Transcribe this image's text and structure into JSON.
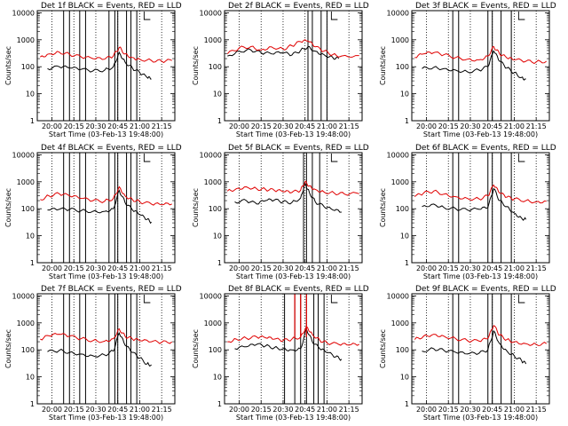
{
  "figure": {
    "background": "#ffffff"
  },
  "colors": {
    "events": "#000000",
    "lld": "#e00000",
    "axis": "#000000"
  },
  "chart_data": [
    {
      "type": "line",
      "detector": "1f",
      "title": "Det 1f BLACK = Events, RED = LLD",
      "xlabel": "Start Time (03-Feb-13 19:48:00)",
      "ylabel": "Counts/sec",
      "xlim": [
        "19:50",
        "21:24"
      ],
      "ylim": [
        1,
        12000
      ],
      "yscale": "log",
      "xticks": [
        "20:00",
        "20:15",
        "20:30",
        "20:45",
        "21:00",
        "21:15"
      ],
      "yticks": [
        "1",
        "10",
        "100",
        "1000",
        "10000"
      ],
      "series": [
        {
          "name": "Events",
          "color": "#000000",
          "x": [
            "19:57",
            "20:05",
            "20:12",
            "20:20",
            "20:28",
            "20:36",
            "20:42",
            "20:46",
            "20:50",
            "20:55",
            "21:00",
            "21:05",
            "21:08"
          ],
          "y": [
            85,
            100,
            90,
            80,
            70,
            75,
            100,
            340,
            150,
            90,
            60,
            40,
            35
          ]
        },
        {
          "name": "LLD",
          "color": "#e00000",
          "x": [
            "19:52",
            "19:58",
            "20:05",
            "20:12",
            "20:20",
            "20:28",
            "20:36",
            "20:42",
            "20:46",
            "20:50",
            "20:55",
            "21:00",
            "21:08",
            "21:15",
            "21:22"
          ],
          "y": [
            230,
            300,
            350,
            290,
            230,
            200,
            190,
            250,
            520,
            300,
            220,
            190,
            170,
            160,
            170
          ]
        }
      ],
      "event_lines": [
        "20:08",
        "20:12",
        "20:19",
        "20:23",
        "20:39",
        "20:43",
        "20:45",
        "20:51",
        "20:54",
        "20:58"
      ]
    },
    {
      "type": "line",
      "detector": "2f",
      "title": "Det 2f BLACK = Events, RED = LLD",
      "xlabel": "Start Time (03-Feb-13 19:48:00)",
      "ylabel": "Counts/sec",
      "xlim": [
        "19:50",
        "21:24"
      ],
      "ylim": [
        1,
        12000
      ],
      "yscale": "log",
      "xticks": [
        "20:00",
        "20:15",
        "20:30",
        "20:45",
        "21:00",
        "21:15"
      ],
      "yticks": [
        "1",
        "10",
        "100",
        "1000",
        "10000"
      ],
      "series": [
        {
          "name": "Events",
          "color": "#000000",
          "x": [
            "19:52",
            "20:00",
            "20:08",
            "20:15",
            "20:22",
            "20:30",
            "20:36",
            "20:42",
            "20:47",
            "20:52",
            "20:58",
            "21:04",
            "21:08"
          ],
          "y": [
            250,
            380,
            420,
            330,
            300,
            330,
            270,
            400,
            550,
            380,
            280,
            220,
            200
          ]
        },
        {
          "name": "LLD",
          "color": "#e00000",
          "x": [
            "19:52",
            "20:00",
            "20:08",
            "20:15",
            "20:22",
            "20:30",
            "20:36",
            "20:42",
            "20:47",
            "20:52",
            "20:58",
            "21:04",
            "21:10",
            "21:22"
          ],
          "y": [
            300,
            500,
            560,
            420,
            550,
            450,
            600,
            850,
            900,
            550,
            380,
            280,
            250,
            260
          ]
        }
      ],
      "event_lines": [
        "20:47",
        "20:50",
        "20:56",
        "21:00"
      ]
    },
    {
      "type": "line",
      "detector": "3f",
      "title": "Det 3f BLACK = Events, RED = LLD",
      "xlabel": "Start Time (03-Feb-13 19:48:00)",
      "ylabel": "Counts/sec",
      "xlim": [
        "19:50",
        "21:24"
      ],
      "ylim": [
        1,
        12000
      ],
      "yscale": "log",
      "xticks": [
        "20:00",
        "20:15",
        "20:30",
        "20:45",
        "21:00",
        "21:15"
      ],
      "yticks": [
        "1",
        "10",
        "100",
        "1000",
        "10000"
      ],
      "series": [
        {
          "name": "Events",
          "color": "#000000",
          "x": [
            "19:57",
            "20:05",
            "20:12",
            "20:20",
            "20:28",
            "20:36",
            "20:42",
            "20:46",
            "20:50",
            "20:55",
            "21:00",
            "21:05",
            "21:08"
          ],
          "y": [
            85,
            95,
            85,
            75,
            65,
            75,
            100,
            380,
            160,
            90,
            60,
            40,
            35
          ]
        },
        {
          "name": "LLD",
          "color": "#e00000",
          "x": [
            "19:52",
            "19:58",
            "20:05",
            "20:12",
            "20:20",
            "20:28",
            "20:36",
            "20:42",
            "20:46",
            "20:50",
            "20:55",
            "21:00",
            "21:08",
            "21:15",
            "21:22"
          ],
          "y": [
            220,
            300,
            330,
            280,
            220,
            190,
            180,
            250,
            560,
            300,
            210,
            180,
            160,
            150,
            160
          ]
        }
      ],
      "event_lines": [
        "20:18",
        "20:22",
        "20:42",
        "20:45",
        "20:51",
        "20:58"
      ]
    },
    {
      "type": "line",
      "detector": "4f",
      "title": "Det 4f BLACK = Events, RED = LLD",
      "xlabel": "Start Time (03-Feb-13 19:48:00)",
      "ylabel": "Counts/sec",
      "xlim": [
        "19:50",
        "21:24"
      ],
      "ylim": [
        1,
        12000
      ],
      "yscale": "log",
      "xticks": [
        "20:00",
        "20:15",
        "20:30",
        "20:45",
        "21:00",
        "21:15"
      ],
      "yticks": [
        "1",
        "10",
        "100",
        "1000",
        "10000"
      ],
      "series": [
        {
          "name": "Events",
          "color": "#000000",
          "x": [
            "19:57",
            "20:05",
            "20:12",
            "20:20",
            "20:28",
            "20:36",
            "20:42",
            "20:46",
            "20:50",
            "20:55",
            "21:00",
            "21:05",
            "21:08"
          ],
          "y": [
            90,
            95,
            95,
            85,
            80,
            80,
            100,
            480,
            170,
            90,
            60,
            40,
            32
          ]
        },
        {
          "name": "LLD",
          "color": "#e00000",
          "x": [
            "19:52",
            "19:58",
            "20:05",
            "20:12",
            "20:20",
            "20:28",
            "20:36",
            "20:42",
            "20:46",
            "20:50",
            "20:55",
            "21:00",
            "21:08",
            "21:15",
            "21:22"
          ],
          "y": [
            220,
            300,
            360,
            300,
            240,
            200,
            190,
            240,
            650,
            300,
            220,
            180,
            150,
            140,
            150
          ]
        }
      ],
      "event_lines": [
        "20:08",
        "20:12",
        "20:19",
        "20:23",
        "20:39",
        "20:43",
        "20:45",
        "20:51",
        "20:54",
        "20:58"
      ]
    },
    {
      "type": "line",
      "detector": "5f",
      "title": "Det 5f BLACK = Events, RED = LLD",
      "xlabel": "Start Time (03-Feb-13 19:48:00)",
      "ylabel": "Counts/sec",
      "xlim": [
        "19:50",
        "21:24"
      ],
      "ylim": [
        1,
        12000
      ],
      "yscale": "log",
      "xticks": [
        "20:00",
        "20:15",
        "20:30",
        "20:45",
        "21:00",
        "21:15"
      ],
      "yticks": [
        "1",
        "10",
        "100",
        "1000",
        "10000"
      ],
      "series": [
        {
          "name": "Events",
          "color": "#000000",
          "x": [
            "19:57",
            "20:05",
            "20:12",
            "20:18",
            "20:24",
            "20:30",
            "20:36",
            "20:42",
            "20:45",
            "20:48",
            "20:52",
            "20:58",
            "21:04",
            "21:10"
          ],
          "y": [
            180,
            200,
            150,
            200,
            210,
            180,
            170,
            250,
            900,
            400,
            180,
            120,
            90,
            75
          ]
        },
        {
          "name": "LLD",
          "color": "#e00000",
          "x": [
            "19:52",
            "19:58",
            "20:05",
            "20:12",
            "20:18",
            "20:24",
            "20:30",
            "20:36",
            "20:42",
            "20:45",
            "20:48",
            "20:52",
            "20:58",
            "21:05",
            "21:12",
            "21:22"
          ],
          "y": [
            450,
            550,
            650,
            550,
            520,
            480,
            430,
            400,
            480,
            1000,
            700,
            520,
            420,
            380,
            350,
            360
          ]
        }
      ],
      "event_lines": [
        "20:44",
        "20:46",
        "20:50",
        "20:55"
      ]
    },
    {
      "type": "line",
      "detector": "6f",
      "title": "Det 6f BLACK = Events, RED = LLD",
      "xlabel": "Start Time (03-Feb-13 19:48:00)",
      "ylabel": "Counts/sec",
      "xlim": [
        "19:50",
        "21:24"
      ],
      "ylim": [
        1,
        12000
      ],
      "yscale": "log",
      "xticks": [
        "20:00",
        "20:15",
        "20:30",
        "20:45",
        "21:00",
        "21:15"
      ],
      "yticks": [
        "1",
        "10",
        "100",
        "1000",
        "10000"
      ],
      "series": [
        {
          "name": "Events",
          "color": "#000000",
          "x": [
            "19:57",
            "20:05",
            "20:12",
            "20:20",
            "20:28",
            "20:36",
            "20:42",
            "20:46",
            "20:50",
            "20:55",
            "21:00",
            "21:05",
            "21:08"
          ],
          "y": [
            120,
            150,
            110,
            100,
            90,
            95,
            110,
            550,
            200,
            120,
            70,
            45,
            40
          ]
        },
        {
          "name": "LLD",
          "color": "#e00000",
          "x": [
            "19:52",
            "19:58",
            "20:05",
            "20:12",
            "20:20",
            "20:28",
            "20:36",
            "20:42",
            "20:46",
            "20:50",
            "20:55",
            "21:00",
            "21:08",
            "21:15",
            "21:22"
          ],
          "y": [
            280,
            380,
            450,
            350,
            280,
            240,
            230,
            300,
            750,
            380,
            270,
            230,
            200,
            180,
            190
          ]
        }
      ],
      "event_lines": [
        "20:18",
        "20:22",
        "20:42",
        "20:45",
        "20:51",
        "20:58"
      ]
    },
    {
      "type": "line",
      "detector": "7f",
      "title": "Det 7f BLACK = Events, RED = LLD",
      "xlabel": "Start Time (03-Feb-13 19:48:00)",
      "ylabel": "Counts/sec",
      "xlim": [
        "19:50",
        "21:24"
      ],
      "ylim": [
        1,
        12000
      ],
      "yscale": "log",
      "xticks": [
        "20:00",
        "20:15",
        "20:30",
        "20:45",
        "21:00",
        "21:15"
      ],
      "yticks": [
        "1",
        "10",
        "100",
        "1000",
        "10000"
      ],
      "series": [
        {
          "name": "Events",
          "color": "#000000",
          "x": [
            "19:57",
            "20:05",
            "20:12",
            "20:20",
            "20:28",
            "20:36",
            "20:42",
            "20:46",
            "20:50",
            "20:55",
            "21:00",
            "21:05",
            "21:08"
          ],
          "y": [
            85,
            95,
            80,
            70,
            60,
            65,
            90,
            420,
            150,
            80,
            50,
            30,
            28
          ]
        },
        {
          "name": "LLD",
          "color": "#e00000",
          "x": [
            "19:52",
            "19:58",
            "20:05",
            "20:12",
            "20:20",
            "20:28",
            "20:36",
            "20:42",
            "20:46",
            "20:50",
            "20:55",
            "21:00",
            "21:08",
            "21:15",
            "21:22"
          ],
          "y": [
            250,
            330,
            380,
            320,
            260,
            220,
            210,
            260,
            600,
            320,
            250,
            220,
            200,
            190,
            200
          ]
        }
      ],
      "event_lines": [
        "20:08",
        "20:12",
        "20:19",
        "20:23",
        "20:39",
        "20:43",
        "20:45",
        "20:51",
        "20:54",
        "20:58"
      ]
    },
    {
      "type": "line",
      "detector": "8f",
      "title": "Det 8f BLACK = Events, RED = LLD",
      "xlabel": "Start Time (03-Feb-13 19:48:00)",
      "ylabel": "Counts/sec",
      "xlim": [
        "19:50",
        "21:24"
      ],
      "ylim": [
        1,
        12000
      ],
      "yscale": "log",
      "xticks": [
        "20:00",
        "20:15",
        "20:30",
        "20:45",
        "21:00",
        "21:15"
      ],
      "yticks": [
        "1",
        "10",
        "100",
        "1000",
        "10000"
      ],
      "series": [
        {
          "name": "Events",
          "color": "#000000",
          "x": [
            "19:57",
            "20:05",
            "20:12",
            "20:18",
            "20:24",
            "20:30",
            "20:36",
            "20:42",
            "20:46",
            "20:50",
            "20:55",
            "21:00",
            "21:06",
            "21:10"
          ],
          "y": [
            110,
            130,
            160,
            140,
            120,
            110,
            100,
            110,
            600,
            200,
            110,
            80,
            55,
            45
          ]
        },
        {
          "name": "LLD",
          "color": "#e00000",
          "x": [
            "19:52",
            "19:58",
            "20:05",
            "20:12",
            "20:18",
            "20:24",
            "20:30",
            "20:36",
            "20:42",
            "20:46",
            "20:50",
            "20:55",
            "21:00",
            "21:08",
            "21:15",
            "21:22"
          ],
          "y": [
            200,
            250,
            270,
            300,
            280,
            250,
            220,
            250,
            300,
            750,
            380,
            230,
            180,
            160,
            150,
            160
          ]
        }
      ],
      "red_spikes": [
        "20:38",
        "20:42",
        "20:46"
      ],
      "event_lines": [
        "20:31",
        "20:38",
        "20:42",
        "20:46",
        "20:51",
        "20:54",
        "20:58"
      ]
    },
    {
      "type": "line",
      "detector": "9f",
      "title": "Det 9f BLACK = Events, RED = LLD",
      "xlabel": "Start Time (03-Feb-13 19:48:00)",
      "ylabel": "Counts/sec",
      "xlim": [
        "19:50",
        "21:24"
      ],
      "ylim": [
        1,
        12000
      ],
      "yscale": "log",
      "xticks": [
        "20:00",
        "20:15",
        "20:30",
        "20:45",
        "21:00",
        "21:15"
      ],
      "yticks": [
        "1",
        "10",
        "100",
        "1000",
        "10000"
      ],
      "series": [
        {
          "name": "Events",
          "color": "#000000",
          "x": [
            "19:57",
            "20:05",
            "20:12",
            "20:20",
            "20:28",
            "20:36",
            "20:42",
            "20:46",
            "20:50",
            "20:55",
            "21:00",
            "21:05",
            "21:08"
          ],
          "y": [
            90,
            110,
            95,
            80,
            70,
            75,
            100,
            500,
            170,
            90,
            60,
            40,
            30
          ]
        },
        {
          "name": "LLD",
          "color": "#e00000",
          "x": [
            "19:52",
            "19:58",
            "20:05",
            "20:12",
            "20:20",
            "20:28",
            "20:36",
            "20:42",
            "20:46",
            "20:50",
            "20:55",
            "21:00",
            "21:08",
            "21:15",
            "21:22"
          ],
          "y": [
            240,
            320,
            380,
            320,
            260,
            220,
            210,
            260,
            800,
            350,
            240,
            200,
            170,
            160,
            170
          ]
        }
      ],
      "event_lines": [
        "20:18",
        "20:22",
        "20:42",
        "20:45",
        "20:51",
        "20:58"
      ]
    }
  ]
}
